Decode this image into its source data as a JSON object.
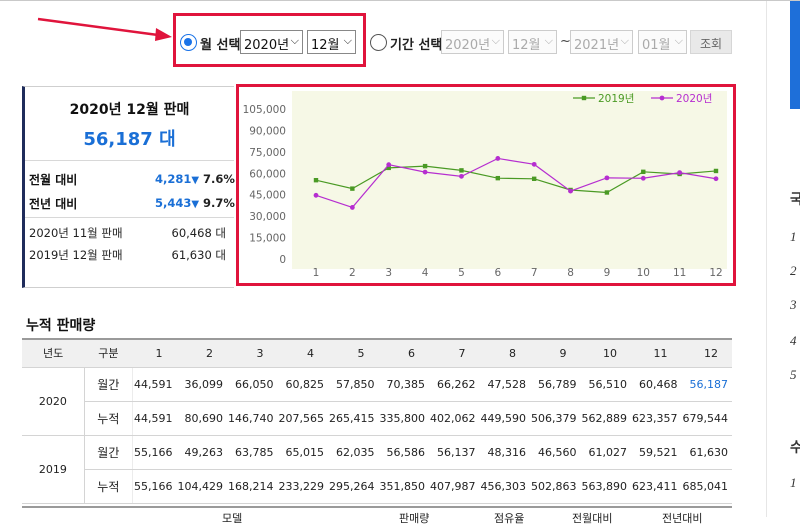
{
  "controls": {
    "month_select_label": "월 선택",
    "period_select_label": "기간 선택",
    "year_value": "2020년",
    "month_value": "12월",
    "period_from_year": "2020년",
    "period_from_month": "12월",
    "period_separator": "~",
    "period_to_year": "2021년",
    "period_to_month": "01월",
    "search_button": "조회",
    "chevron": "⌵"
  },
  "summary": {
    "title": "2020년 12월 판매",
    "value": "56,187 대",
    "mom_label": "전월 대비",
    "mom_value": "4,281",
    "mom_pct": "7.6%",
    "yoy_label": "전년 대비",
    "yoy_value": "5,443",
    "yoy_pct": "9.7%",
    "down_marker": "▼",
    "prev_month_label": "2020년 11월 판매",
    "prev_month_value": "60,468 대",
    "prev_year_label": "2019년 12월 판매",
    "prev_year_value": "61,630 대"
  },
  "chart_data": {
    "type": "line",
    "categories": [
      "1",
      "2",
      "3",
      "4",
      "5",
      "6",
      "7",
      "8",
      "9",
      "10",
      "11",
      "12"
    ],
    "series": [
      {
        "name": "2019년",
        "color": "#4a9a24",
        "marker": "square",
        "values": [
          55166,
          49263,
          63785,
          65015,
          62035,
          56586,
          56137,
          48316,
          46560,
          61027,
          59521,
          61630
        ]
      },
      {
        "name": "2020년",
        "color": "#b62ed0",
        "marker": "circle",
        "values": [
          44591,
          36099,
          66050,
          60825,
          57850,
          70385,
          66262,
          47528,
          56789,
          56510,
          60468,
          56187
        ]
      }
    ],
    "yticks": [
      "105,000",
      "90,000",
      "75,000",
      "60,000",
      "45,000",
      "30,000",
      "15,000",
      "0"
    ],
    "ylim": [
      0,
      105000
    ],
    "legend_position": "top-right",
    "plot_background": "#f6f8e6"
  },
  "cumulative": {
    "title": "누적 판매량",
    "headers": [
      "년도",
      "구분",
      "1",
      "2",
      "3",
      "4",
      "5",
      "6",
      "7",
      "8",
      "9",
      "10",
      "11",
      "12"
    ],
    "rows": [
      {
        "year": "2020",
        "kind": "월간",
        "values": [
          "44,591",
          "36,099",
          "66,050",
          "60,825",
          "57,850",
          "70,385",
          "66,262",
          "47,528",
          "56,789",
          "56,510",
          "60,468",
          "56,187"
        ]
      },
      {
        "year": "",
        "kind": "누적",
        "values": [
          "44,591",
          "80,690",
          "146,740",
          "207,565",
          "265,415",
          "335,800",
          "402,062",
          "449,590",
          "506,379",
          "562,889",
          "623,357",
          "679,544"
        ]
      },
      {
        "year": "2019",
        "kind": "월간",
        "values": [
          "55,166",
          "49,263",
          "63,785",
          "65,015",
          "62,035",
          "56,586",
          "56,137",
          "48,316",
          "46,560",
          "61,027",
          "59,521",
          "61,630"
        ]
      },
      {
        "year": "",
        "kind": "누적",
        "values": [
          "55,166",
          "104,429",
          "168,214",
          "233,229",
          "295,264",
          "351,850",
          "407,987",
          "456,303",
          "502,863",
          "563,890",
          "623,411",
          "685,041"
        ]
      }
    ]
  },
  "bottom_headers": [
    "모델",
    "판매량",
    "점유율",
    "전월대비",
    "전년대비"
  ],
  "right_panel_marks": [
    "국",
    "1",
    "2",
    "3",
    "4",
    "5",
    "수",
    "1"
  ]
}
